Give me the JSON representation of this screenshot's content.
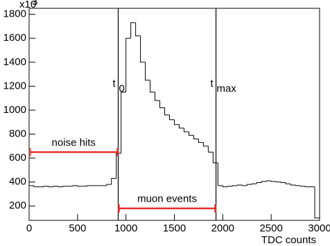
{
  "chart_data": {
    "type": "histogram",
    "x_label": "TDC counts",
    "y_multiplier": {
      "base": "x10",
      "exponent": "3"
    },
    "color": "#000000",
    "bins": [
      0,
      50,
      100,
      150,
      200,
      250,
      300,
      350,
      400,
      450,
      500,
      550,
      600,
      650,
      700,
      750,
      800,
      850,
      900,
      950,
      1000,
      1050,
      1100,
      1150,
      1200,
      1250,
      1300,
      1350,
      1400,
      1450,
      1500,
      1550,
      1600,
      1650,
      1700,
      1750,
      1800,
      1850,
      1900,
      1950,
      2000,
      2050,
      2100,
      2150,
      2200,
      2250,
      2300,
      2350,
      2400,
      2450,
      2500,
      2550,
      2600,
      2650,
      2700,
      2750,
      2800,
      2850,
      2900,
      2950,
      3000
    ],
    "values": [
      370,
      360,
      360,
      365,
      360,
      365,
      360,
      365,
      365,
      370,
      365,
      365,
      370,
      370,
      370,
      370,
      380,
      430,
      640,
      1150,
      1600,
      1730,
      1620,
      1400,
      1250,
      1150,
      1080,
      1020,
      960,
      920,
      880,
      850,
      820,
      790,
      760,
      730,
      700,
      650,
      560,
      370,
      360,
      365,
      370,
      375,
      370,
      380,
      385,
      395,
      405,
      410,
      405,
      400,
      395,
      385,
      375,
      370,
      365,
      360,
      360,
      100
    ],
    "xlim": [
      0,
      3000
    ],
    "xticks": [
      0,
      500,
      1000,
      1500,
      2000,
      2500,
      3000
    ],
    "ylim": [
      80,
      1850
    ],
    "yticks": [
      200,
      400,
      600,
      800,
      1000,
      1200,
      1400,
      1600,
      1800
    ],
    "markers": [
      {
        "text": "t",
        "sub": "0",
        "x": 920,
        "color": "#000000"
      },
      {
        "text": "t",
        "sub": "max",
        "x": 1930,
        "color": "#000000"
      }
    ],
    "ranges": [
      {
        "text": "noise hits",
        "x": [
          0,
          920
        ],
        "y": 650,
        "color": "#e8312a"
      },
      {
        "text": "muon events",
        "x": [
          920,
          1930
        ],
        "y": 180,
        "color": "#e8312a"
      }
    ]
  }
}
